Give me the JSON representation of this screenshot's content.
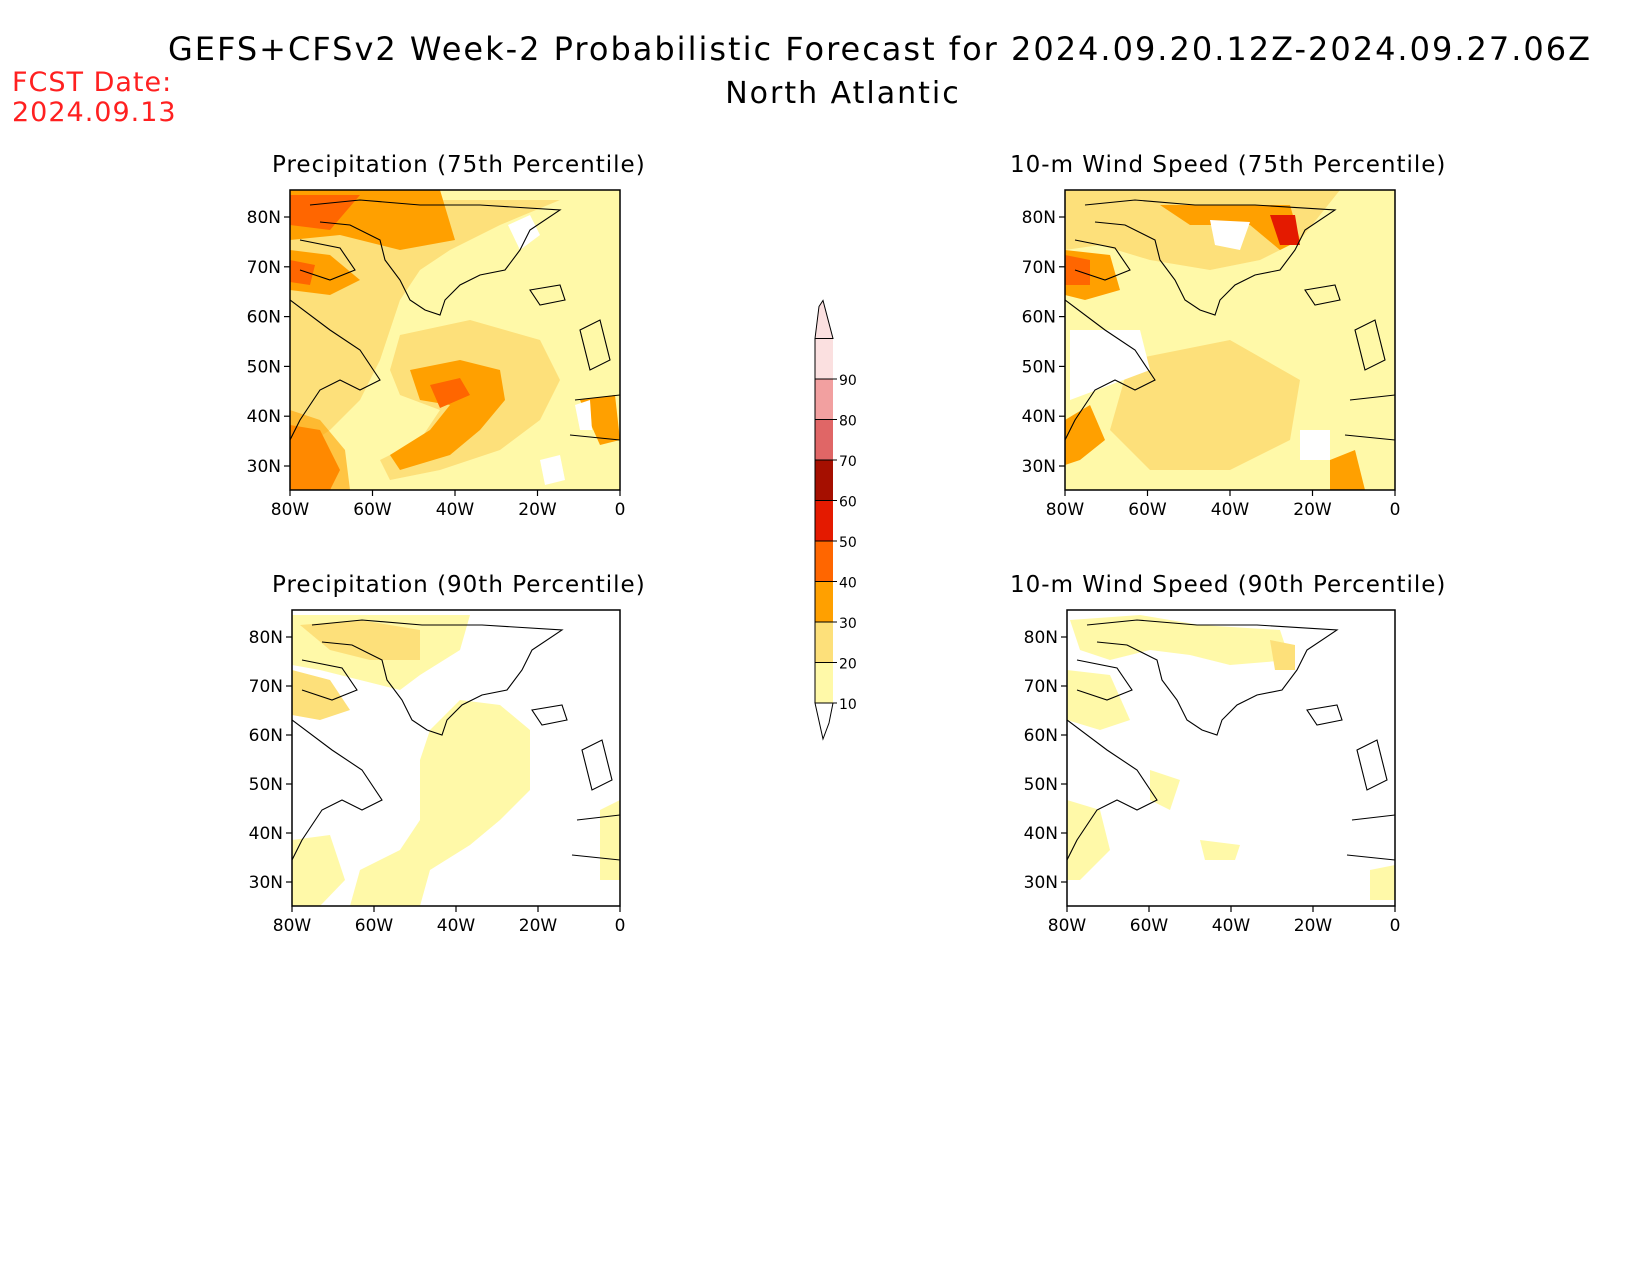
{
  "header": {
    "title": "GEFS+CFSv2 Week-2 Probabilistic Forecast for 2024.09.20.12Z-2024.09.27.06Z",
    "subtitle": "North Atlantic",
    "fcst_date_label": "FCST Date:",
    "fcst_date_value": "2024.09.13"
  },
  "axes": {
    "lat_ticks": [
      "80N",
      "70N",
      "60N",
      "50N",
      "40N",
      "30N"
    ],
    "lon_ticks": [
      "80W",
      "60W",
      "40W",
      "20W",
      "0"
    ]
  },
  "panels": [
    {
      "id": "precip-75",
      "title": "Precipitation (75th Percentile)"
    },
    {
      "id": "wind-75",
      "title": "10-m Wind Speed (75th Percentile)"
    },
    {
      "id": "precip-90",
      "title": "Precipitation (90th Percentile)"
    },
    {
      "id": "wind-90",
      "title": "10-m Wind Speed (90th Percentile)"
    }
  ],
  "colorbar": {
    "levels": [
      "10",
      "20",
      "30",
      "40",
      "50",
      "60",
      "70",
      "80",
      "90"
    ],
    "colors": [
      "#fff9a8",
      "#fde07a",
      "#ffa000",
      "#ff6600",
      "#e41a00",
      "#a50f00",
      "#e06666",
      "#f2a0a0",
      "#fbe0e0"
    ]
  }
}
